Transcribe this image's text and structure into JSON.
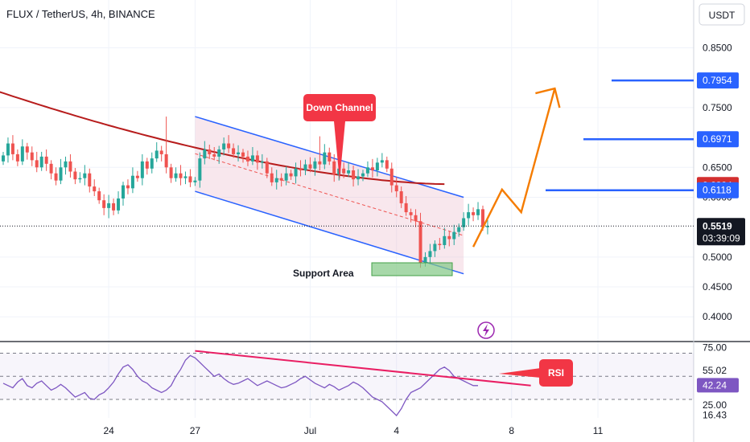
{
  "header": {
    "title": "FLUX / TetherUS, 4h, BINANCE",
    "currency": "USDT"
  },
  "colors": {
    "up": "#26a69a",
    "down": "#ef5350",
    "ma": "#b71c1c",
    "channel": "#2962ff",
    "projection": "#f57c00",
    "callout": "#f23645",
    "support": "#81c784",
    "rsi": "#7e57c2",
    "rsi_trend": "#e91e63"
  },
  "chart_data": {
    "type": "candlestick",
    "title": "FLUX / TetherUS, 4h, BINANCE",
    "price_axis": {
      "ticks": [
        "0.8500",
        "0.7500",
        "0.6500",
        "0.6000",
        "0.5000",
        "0.4500",
        "0.4000"
      ],
      "tick_values": [
        0.85,
        0.75,
        0.65,
        0.6,
        0.5,
        0.45,
        0.4
      ],
      "range": [
        0.36,
        0.93
      ]
    },
    "time_axis": {
      "ticks": [
        "24",
        "27",
        "Jul",
        "4",
        "8",
        "11"
      ],
      "tick_index": [
        22,
        40,
        64,
        82,
        106,
        124
      ]
    },
    "last_price": {
      "value": 0.5519,
      "label": "0.5519",
      "countdown": "03:39:09"
    },
    "ohlc_close": [
      0.67,
      0.69,
      0.672,
      0.66,
      0.685,
      0.675,
      0.662,
      0.65,
      0.668,
      0.656,
      0.64,
      0.628,
      0.65,
      0.66,
      0.643,
      0.63,
      0.632,
      0.64,
      0.618,
      0.61,
      0.595,
      0.582,
      0.59,
      0.578,
      0.598,
      0.62,
      0.615,
      0.636,
      0.632,
      0.66,
      0.648,
      0.665,
      0.678,
      0.672,
      0.65,
      0.632,
      0.64,
      0.632,
      0.635,
      0.625,
      0.628,
      0.665,
      0.68,
      0.672,
      0.668,
      0.68,
      0.69,
      0.682,
      0.672,
      0.675,
      0.668,
      0.66,
      0.67,
      0.658,
      0.66,
      0.64,
      0.625,
      0.632,
      0.628,
      0.64,
      0.635,
      0.648,
      0.645,
      0.655,
      0.648,
      0.66,
      0.655,
      0.675,
      0.66,
      0.638,
      0.648,
      0.64,
      0.645,
      0.63,
      0.635,
      0.64,
      0.65,
      0.645,
      0.658,
      0.662,
      0.648,
      0.62,
      0.61,
      0.59,
      0.575,
      0.57,
      0.56,
      0.49,
      0.5,
      0.51,
      0.522,
      0.52,
      0.535,
      0.53,
      0.542,
      0.55,
      0.565,
      0.575,
      0.57,
      0.58,
      0.55,
      0.552
    ],
    "series": [
      {
        "name": "",
        "type": "moving_average",
        "levels_start_end": [
          0.785,
          0.622
        ]
      }
    ],
    "levels": [
      {
        "label": "0.7954",
        "value": 0.7954
      },
      {
        "label": "0.6971",
        "value": 0.6971
      },
      {
        "label": "0.6204",
        "value": 0.6204
      },
      {
        "label": "0.6118",
        "value": 0.6118
      }
    ],
    "channel": {
      "upper": [
        [
          40,
          0.735
        ],
        [
          96,
          0.6
        ]
      ],
      "lower": [
        [
          40,
          0.61
        ],
        [
          96,
          0.472
        ]
      ],
      "mid": [
        [
          40,
          0.673
        ],
        [
          96,
          0.536
        ]
      ]
    },
    "projection_path": [
      [
        98,
        0.517
      ],
      [
        104,
        0.613
      ],
      [
        108,
        0.575
      ],
      [
        115,
        0.782
      ]
    ],
    "annotations": {
      "down_channel": "Down Channel",
      "support_area": "Support Area",
      "rsi": "RSI"
    },
    "rsi_panel": {
      "ticks": [
        "75.00",
        "55.02",
        "25.00",
        "16.43"
      ],
      "tick_values": [
        75.0,
        55.02,
        25.0,
        16.43
      ],
      "current": "42.24",
      "current_value": 42.24,
      "bands": [
        70,
        50,
        30
      ],
      "range": [
        14,
        78
      ],
      "values": [
        44,
        42,
        40,
        45,
        48,
        42,
        40,
        44,
        46,
        42,
        38,
        40,
        43,
        40,
        36,
        32,
        34,
        36,
        31,
        30,
        34,
        36,
        40,
        45,
        52,
        58,
        60,
        56,
        50,
        46,
        44,
        40,
        38,
        36,
        38,
        42,
        50,
        56,
        64,
        68,
        66,
        62,
        58,
        54,
        50,
        52,
        48,
        45,
        43,
        44,
        46,
        48,
        45,
        42,
        44,
        46,
        44,
        42,
        40,
        41,
        43,
        45,
        48,
        50,
        47,
        44,
        42,
        40,
        43,
        41,
        38,
        40,
        42,
        45,
        43,
        40,
        36,
        32,
        30,
        28,
        24,
        20,
        16,
        22,
        30,
        36,
        38,
        40,
        44,
        48,
        52,
        56,
        58,
        55,
        50,
        48,
        46,
        44,
        42,
        42
      ],
      "trendline": [
        [
          40,
          72
        ],
        [
          110,
          42
        ]
      ]
    },
    "icon": "lightning-icon"
  }
}
